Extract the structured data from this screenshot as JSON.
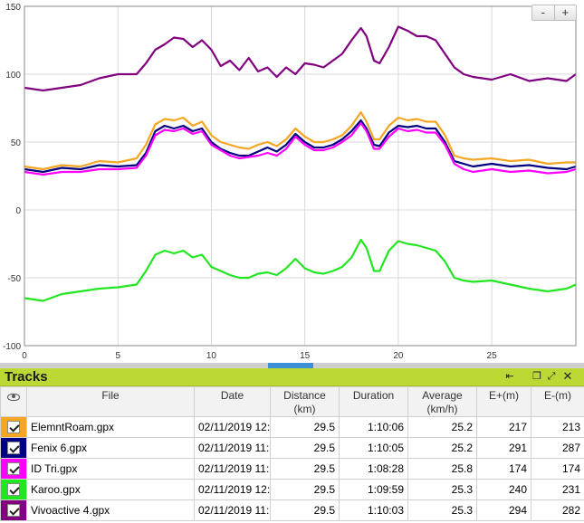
{
  "chart_data": {
    "type": "line",
    "xlim": [
      0,
      29.5
    ],
    "ylim": [
      -100,
      150
    ],
    "xticks": [
      "0",
      "5",
      "10",
      "15",
      "20",
      "25"
    ],
    "yticks": [
      "150",
      "100",
      "50",
      "0",
      "-50",
      "-100"
    ],
    "grid": true,
    "series": [
      {
        "name": "Vivoactive 4.gpx",
        "color": "#800080",
        "x": [
          0,
          1,
          2,
          3,
          4,
          5,
          6,
          6.5,
          7,
          7.5,
          8,
          8.5,
          9,
          9.5,
          10,
          10.5,
          11,
          11.5,
          12,
          12.5,
          13,
          13.5,
          14,
          14.5,
          15,
          15.5,
          16,
          16.5,
          17,
          17.5,
          18,
          18.3,
          18.7,
          19,
          19.5,
          20,
          20.5,
          21,
          21.5,
          22,
          22.5,
          23,
          23.5,
          24,
          25,
          26,
          27,
          28,
          29,
          29.5
        ],
        "y": [
          90,
          88,
          90,
          92,
          97,
          100,
          100,
          108,
          118,
          122,
          127,
          126,
          120,
          125,
          118,
          106,
          110,
          103,
          112,
          102,
          105,
          98,
          105,
          100,
          108,
          107,
          105,
          110,
          115,
          125,
          134,
          128,
          110,
          108,
          120,
          135,
          132,
          128,
          128,
          125,
          115,
          105,
          100,
          98,
          96,
          100,
          95,
          97,
          95,
          100
        ]
      },
      {
        "name": "ElemntRoam.gpx",
        "color": "#f5a623",
        "x": [
          0,
          1,
          2,
          3,
          4,
          5,
          6,
          6.5,
          7,
          7.5,
          8,
          8.5,
          9,
          9.5,
          10,
          10.5,
          11,
          11.5,
          12,
          12.5,
          13,
          13.5,
          14,
          14.5,
          15,
          15.5,
          16,
          16.5,
          17,
          17.5,
          18,
          18.3,
          18.7,
          19,
          19.5,
          20,
          20.5,
          21,
          21.5,
          22,
          22.5,
          23,
          23.5,
          24,
          25,
          26,
          27,
          28,
          29,
          29.5
        ],
        "y": [
          32,
          30,
          33,
          32,
          36,
          35,
          38,
          48,
          63,
          67,
          66,
          68,
          62,
          65,
          55,
          50,
          48,
          46,
          45,
          48,
          50,
          47,
          52,
          60,
          54,
          50,
          50,
          52,
          55,
          62,
          72,
          65,
          52,
          52,
          62,
          68,
          66,
          67,
          65,
          65,
          55,
          40,
          38,
          37,
          38,
          36,
          37,
          34,
          35,
          35
        ]
      },
      {
        "name": "Fenix 6.gpx",
        "color": "#000080",
        "x": [
          0,
          1,
          2,
          3,
          4,
          5,
          6,
          6.5,
          7,
          7.5,
          8,
          8.5,
          9,
          9.5,
          10,
          10.5,
          11,
          11.5,
          12,
          12.5,
          13,
          13.5,
          14,
          14.5,
          15,
          15.5,
          16,
          16.5,
          17,
          17.5,
          18,
          18.3,
          18.7,
          19,
          19.5,
          20,
          20.5,
          21,
          21.5,
          22,
          22.5,
          23,
          23.5,
          24,
          25,
          26,
          27,
          28,
          29,
          29.5
        ],
        "y": [
          30,
          28,
          31,
          30,
          33,
          32,
          33,
          42,
          58,
          62,
          60,
          62,
          58,
          60,
          50,
          45,
          42,
          40,
          40,
          43,
          46,
          43,
          48,
          56,
          50,
          46,
          46,
          48,
          52,
          58,
          66,
          60,
          48,
          47,
          57,
          62,
          61,
          62,
          60,
          60,
          50,
          36,
          34,
          32,
          34,
          32,
          33,
          31,
          30,
          32
        ]
      },
      {
        "name": "ID Tri.gpx",
        "color": "#ff00ff",
        "x": [
          0,
          1,
          2,
          3,
          4,
          5,
          6,
          6.5,
          7,
          7.5,
          8,
          8.5,
          9,
          9.5,
          10,
          10.5,
          11,
          11.5,
          12,
          12.5,
          13,
          13.5,
          14,
          14.5,
          15,
          15.5,
          16,
          16.5,
          17,
          17.5,
          18,
          18.3,
          18.7,
          19,
          19.5,
          20,
          20.5,
          21,
          21.5,
          22,
          22.5,
          23,
          23.5,
          24,
          25,
          26,
          27,
          28,
          29,
          29.5
        ],
        "y": [
          28,
          26,
          28,
          28,
          30,
          30,
          31,
          40,
          55,
          59,
          58,
          60,
          56,
          58,
          48,
          44,
          40,
          38,
          39,
          40,
          42,
          40,
          45,
          54,
          48,
          44,
          44,
          46,
          50,
          55,
          64,
          58,
          45,
          45,
          54,
          60,
          58,
          59,
          57,
          57,
          48,
          34,
          30,
          28,
          30,
          28,
          29,
          27,
          28,
          30
        ]
      },
      {
        "name": "Karoo.gpx",
        "color": "#21e621",
        "x": [
          0,
          1,
          2,
          3,
          4,
          5,
          6,
          6.5,
          7,
          7.5,
          8,
          8.5,
          9,
          9.5,
          10,
          10.5,
          11,
          11.5,
          12,
          12.5,
          13,
          13.5,
          14,
          14.5,
          15,
          15.5,
          16,
          16.5,
          17,
          17.5,
          18,
          18.3,
          18.7,
          19,
          19.5,
          20,
          20.5,
          21,
          21.5,
          22,
          22.5,
          23,
          23.5,
          24,
          25,
          26,
          27,
          28,
          29,
          29.5
        ],
        "y": [
          -65,
          -67,
          -62,
          -60,
          -58,
          -57,
          -55,
          -45,
          -33,
          -30,
          -32,
          -30,
          -35,
          -33,
          -42,
          -45,
          -48,
          -50,
          -50,
          -47,
          -46,
          -48,
          -43,
          -36,
          -43,
          -46,
          -47,
          -45,
          -42,
          -35,
          -22,
          -28,
          -45,
          -45,
          -30,
          -23,
          -25,
          -26,
          -28,
          -30,
          -38,
          -50,
          -52,
          -53,
          -52,
          -55,
          -58,
          -60,
          -58,
          -55
        ]
      }
    ]
  },
  "zoom": {
    "minus": "-",
    "plus": "+"
  },
  "tracks": {
    "title": "Tracks",
    "columns": {
      "file": "File",
      "date": "Date",
      "distance": "Distance",
      "distance_unit": "(km)",
      "duration": "Duration",
      "average": "Average",
      "average_unit": "(km/h)",
      "eplus": "E+(m)",
      "eminus": "E-(m)"
    },
    "rows": [
      {
        "color": "#f5a623",
        "file": "ElemntRoam.gpx",
        "date": "02/11/2019 12:",
        "distance": "29.5",
        "duration": "1:10:06",
        "average": "25.2",
        "eplus": "217",
        "eminus": "213"
      },
      {
        "color": "#000080",
        "file": "Fenix 6.gpx",
        "date": "02/11/2019 11:(",
        "distance": "29.5",
        "duration": "1:10:05",
        "average": "25.2",
        "eplus": "291",
        "eminus": "287"
      },
      {
        "color": "#ff00ff",
        "file": "ID Tri.gpx",
        "date": "02/11/2019 11:(",
        "distance": "29.5",
        "duration": "1:08:28",
        "average": "25.8",
        "eplus": "174",
        "eminus": "174"
      },
      {
        "color": "#21e621",
        "file": "Karoo.gpx",
        "date": "02/11/2019 12:",
        "distance": "29.5",
        "duration": "1:09:59",
        "average": "25.3",
        "eplus": "240",
        "eminus": "231"
      },
      {
        "color": "#800080",
        "file": "Vivoactive 4.gpx",
        "date": "02/11/2019 11:(",
        "distance": "29.5",
        "duration": "1:10:03",
        "average": "25.3",
        "eplus": "294",
        "eminus": "282"
      }
    ]
  }
}
